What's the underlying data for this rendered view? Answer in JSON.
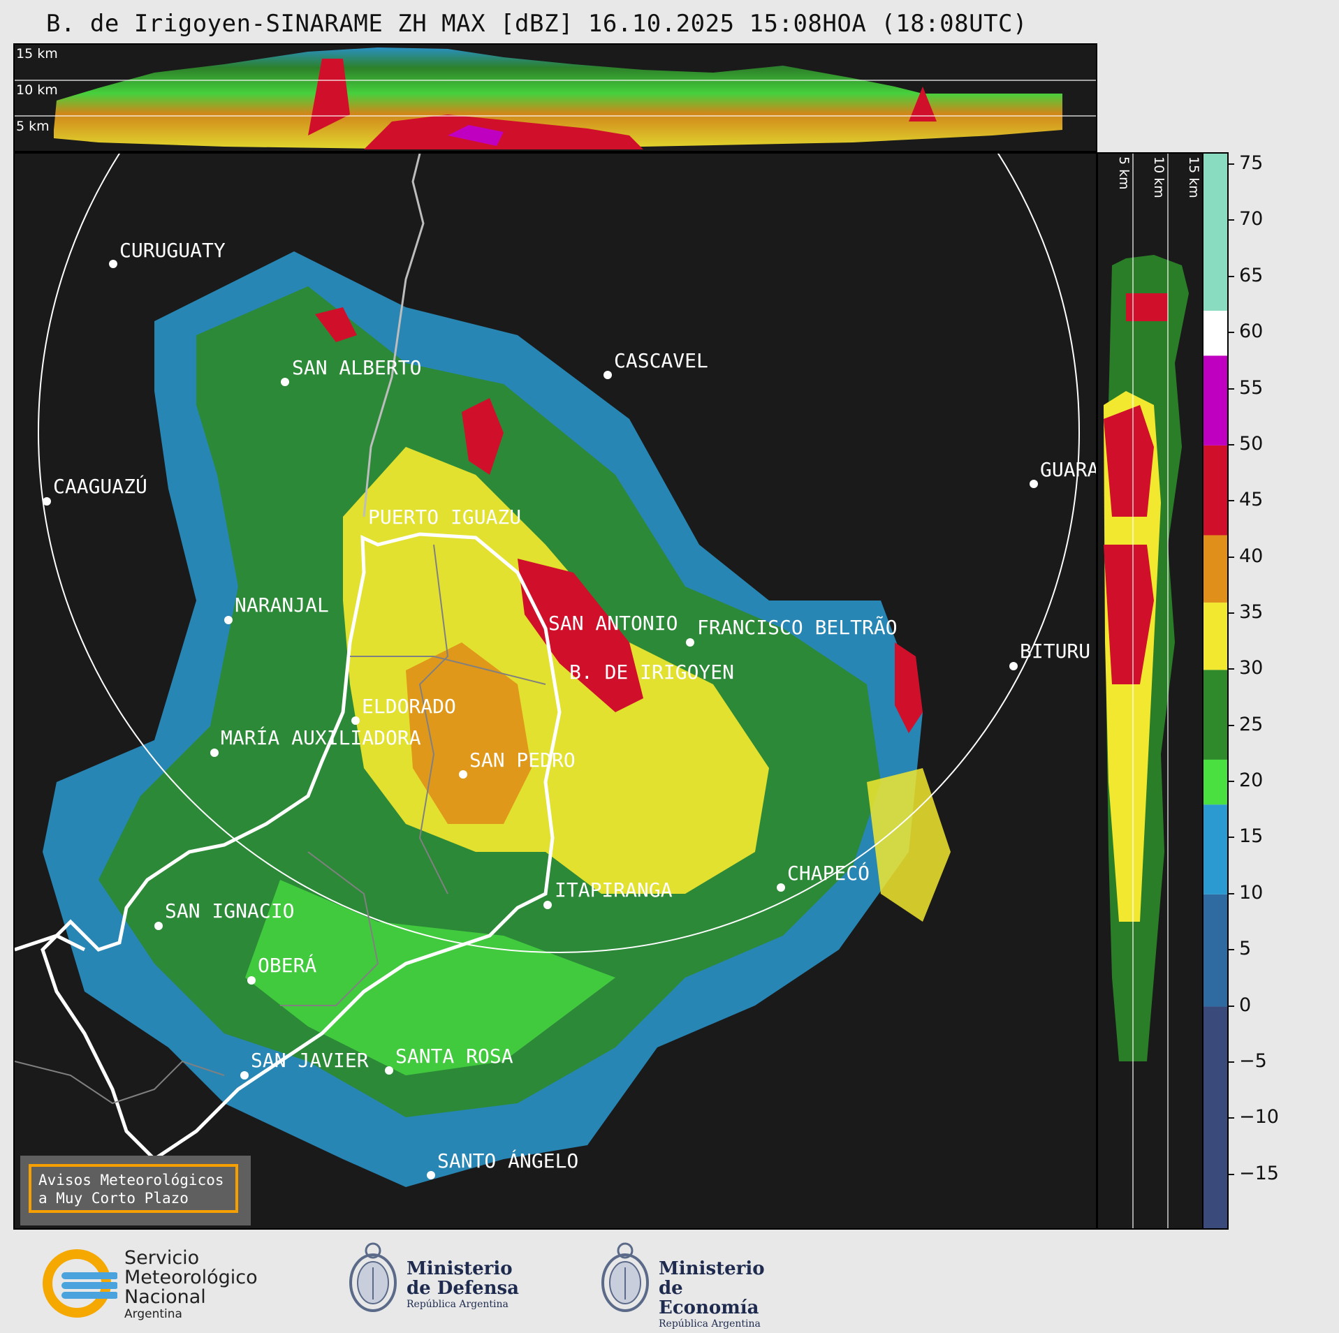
{
  "title": "B. de Irigoyen-SINARAME ZH MAX [dBZ] 16.10.2025 15:08HOA (18:08UTC)",
  "top_panel": {
    "height_labels": [
      "15 km",
      "10 km",
      "5 km"
    ]
  },
  "side_panel": {
    "height_labels": [
      "5 km",
      "10 km",
      "15 km"
    ]
  },
  "colorbar": {
    "unit": "dBZ",
    "ticks": [
      "75",
      "70",
      "65",
      "60",
      "55",
      "50",
      "45",
      "40",
      "35",
      "30",
      "25",
      "20",
      "15",
      "10",
      "5",
      "0",
      "−5",
      "−10",
      "−15"
    ],
    "min": -20,
    "max": 76,
    "color_stops": [
      {
        "from": -20,
        "to": 0,
        "color": "#3a4a7a"
      },
      {
        "from": 0,
        "to": 10,
        "color": "#2f6aa0"
      },
      {
        "from": 10,
        "to": 18,
        "color": "#2a9ad0"
      },
      {
        "from": 18,
        "to": 22,
        "color": "#4ae040"
      },
      {
        "from": 22,
        "to": 30,
        "color": "#2e8a2a"
      },
      {
        "from": 30,
        "to": 36,
        "color": "#f2e830"
      },
      {
        "from": 36,
        "to": 42,
        "color": "#e0901a"
      },
      {
        "from": 42,
        "to": 50,
        "color": "#d0102a"
      },
      {
        "from": 50,
        "to": 58,
        "color": "#c000c0"
      },
      {
        "from": 58,
        "to": 62,
        "color": "#ffffff"
      },
      {
        "from": 62,
        "to": 76,
        "color": "#8adcc0"
      }
    ]
  },
  "cities": [
    {
      "name": "CURUGUATY"
    },
    {
      "name": "SAN ALBERTO"
    },
    {
      "name": "CASCAVEL"
    },
    {
      "name": "CAAGUAZÚ"
    },
    {
      "name": "PUERTO IGUAZU"
    },
    {
      "name": "GUARA"
    },
    {
      "name": "NARANJAL"
    },
    {
      "name": "SAN ANTONIO"
    },
    {
      "name": "FRANCISCO BELTRÃO"
    },
    {
      "name": "B. DE IRIGOYEN"
    },
    {
      "name": "BITURU"
    },
    {
      "name": "ELDORADO"
    },
    {
      "name": "MARÍA AUXILIADORA"
    },
    {
      "name": "SAN PEDRO"
    },
    {
      "name": "ITAPIRANGA"
    },
    {
      "name": "CHAPECÓ"
    },
    {
      "name": "SAN IGNACIO"
    },
    {
      "name": "OBERÁ"
    },
    {
      "name": "SAN JAVIER"
    },
    {
      "name": "SANTA ROSA"
    },
    {
      "name": "SANTO ÁNGELO"
    }
  ],
  "warning_box": {
    "line1": "Avisos Meteorológicos",
    "line2": "a Muy Corto Plazo"
  },
  "logos": {
    "smn": {
      "line1": "Servicio",
      "line2": "Meteorológico",
      "line3": "Nacional",
      "line4": "Argentina"
    },
    "defensa": {
      "line1": "Ministerio",
      "line2": "de Defensa",
      "line3": "República Argentina"
    },
    "economia": {
      "line1": "Ministerio",
      "line2": "de Economía",
      "line3": "República Argentina"
    }
  }
}
